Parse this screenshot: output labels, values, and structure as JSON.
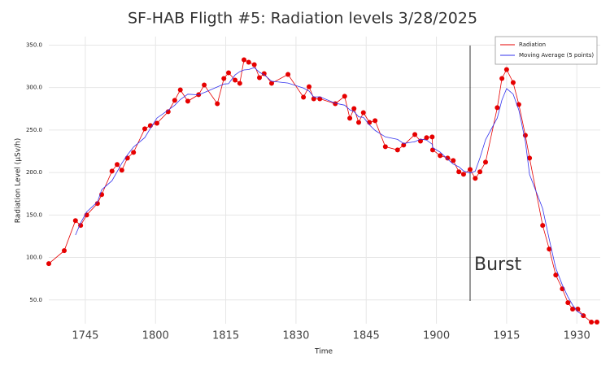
{
  "chart_data": {
    "type": "line",
    "title": "SF-HAB Fligth #5: Radiation levels 3/28/2025",
    "xlabel": "Time",
    "ylabel": "Radiation Level (µSv/h)",
    "x": [
      1057.2,
      1060.5,
      1062.9,
      1064.0,
      1065.3,
      1067.6,
      1068.5,
      1070.7,
      1071.8,
      1072.8,
      1074.0,
      1075.3,
      1077.7,
      1078.9,
      1080.3,
      1082.7,
      1084.1,
      1085.3,
      1086.9,
      1089.2,
      1090.4,
      1093.2,
      1094.6,
      1095.6,
      1097.0,
      1098.0,
      1098.9,
      1099.9,
      1101.1,
      1102.2,
      1103.2,
      1104.8,
      1108.3,
      1111.6,
      1112.8,
      1113.8,
      1115.1,
      1118.4,
      1120.4,
      1121.5,
      1122.4,
      1123.4,
      1124.4,
      1125.7,
      1126.9,
      1129.1,
      1131.7,
      1133.0,
      1135.4,
      1136.6,
      1137.9,
      1139.1,
      1139.2,
      1140.8,
      1142.4,
      1143.6,
      1144.8,
      1145.8,
      1147.2,
      1148.3,
      1149.3,
      1150.5,
      1153.0,
      1154.0,
      1155.0,
      1156.4,
      1157.6,
      1159.0,
      1159.9,
      1162.7,
      1164.1,
      1165.5,
      1166.9,
      1168.1,
      1169.1,
      1170.2,
      1171.4,
      1173.1,
      1174.3
    ],
    "series": [
      {
        "name": "Radiation",
        "color": "#e60000",
        "markers": true,
        "values": [
          92.7,
          108,
          143.4,
          137.7,
          150,
          163.5,
          174,
          201.7,
          209.4,
          202.7,
          217,
          223.7,
          251.4,
          255.3,
          258,
          271.5,
          285,
          297.3,
          284,
          291.6,
          303,
          281,
          310.7,
          317.4,
          308.8,
          305,
          332.7,
          329.8,
          327,
          311.6,
          316.4,
          305,
          315.5,
          288.7,
          301,
          286.8,
          286.8,
          281,
          289.7,
          263.9,
          275.3,
          259,
          270.5,
          259,
          261,
          230.4,
          226.6,
          232.3,
          244.7,
          237,
          241,
          241.9,
          226.6,
          219.9,
          217,
          214.1,
          200.8,
          197.9,
          203.6,
          193.1,
          200.8,
          212.2,
          276.3,
          310.7,
          321.2,
          305.9,
          280.1,
          243.8,
          217,
          137.7,
          109.9,
          79.3,
          63.1,
          46.8,
          39.2,
          39.2,
          31.5,
          23.9,
          23.9
        ]
      },
      {
        "name": "Moving Average (5 points)",
        "color": "#3333ee",
        "markers": false,
        "values": [
          null,
          null,
          126.4,
          140.5,
          153.7,
          165.4,
          179.7,
          190.3,
          201.0,
          210.9,
          220.8,
          230.0,
          241.1,
          252.0,
          264.2,
          273.4,
          279.2,
          285.9,
          292.2,
          291.4,
          294.1,
          300.7,
          304.2,
          304.6,
          314.9,
          318.7,
          320.7,
          321.2,
          323.5,
          318.0,
          315.1,
          307.4,
          305.3,
          299.4,
          295.8,
          288.9,
          289.1,
          281.6,
          279.3,
          273.8,
          271.7,
          265.5,
          265.0,
          256.0,
          249.5,
          241.9,
          239.0,
          234.2,
          236.3,
          239.4,
          238.2,
          233.3,
          229.3,
          223.9,
          215.7,
          209.9,
          206.7,
          201.9,
          199.2,
          201.5,
          217.2,
          238.6,
          264.2,
          285.3,
          298.8,
          292.3,
          273.6,
          236.9,
          197.7,
          157.5,
          121.4,
          87.4,
          67.7,
          53.5,
          44.0,
          36.1,
          31.5,
          null,
          null
        ]
      }
    ],
    "xlim": [
      1057.2,
      1175
    ],
    "xticks": [
      {
        "value": 1065,
        "label": "1745"
      },
      {
        "value": 1080,
        "label": "1800"
      },
      {
        "value": 1095,
        "label": "1815"
      },
      {
        "value": 1110,
        "label": "1830"
      },
      {
        "value": 1125,
        "label": "1845"
      },
      {
        "value": 1140,
        "label": "1900"
      },
      {
        "value": 1155,
        "label": "1915"
      },
      {
        "value": 1170,
        "label": "1930"
      }
    ],
    "ylim": [
      22,
      360
    ],
    "yticks": [
      {
        "value": 50,
        "label": "50.0"
      },
      {
        "value": 100,
        "label": "100.0"
      },
      {
        "value": 150,
        "label": "150.0"
      },
      {
        "value": 200,
        "label": "200.0"
      },
      {
        "value": 250,
        "label": "250.0"
      },
      {
        "value": 300,
        "label": "300.0"
      },
      {
        "value": 350,
        "label": "350.0"
      }
    ],
    "grid": true,
    "legend": "upper right",
    "annotations": [
      {
        "text": "Burst",
        "x": 1147.2
      }
    ]
  }
}
